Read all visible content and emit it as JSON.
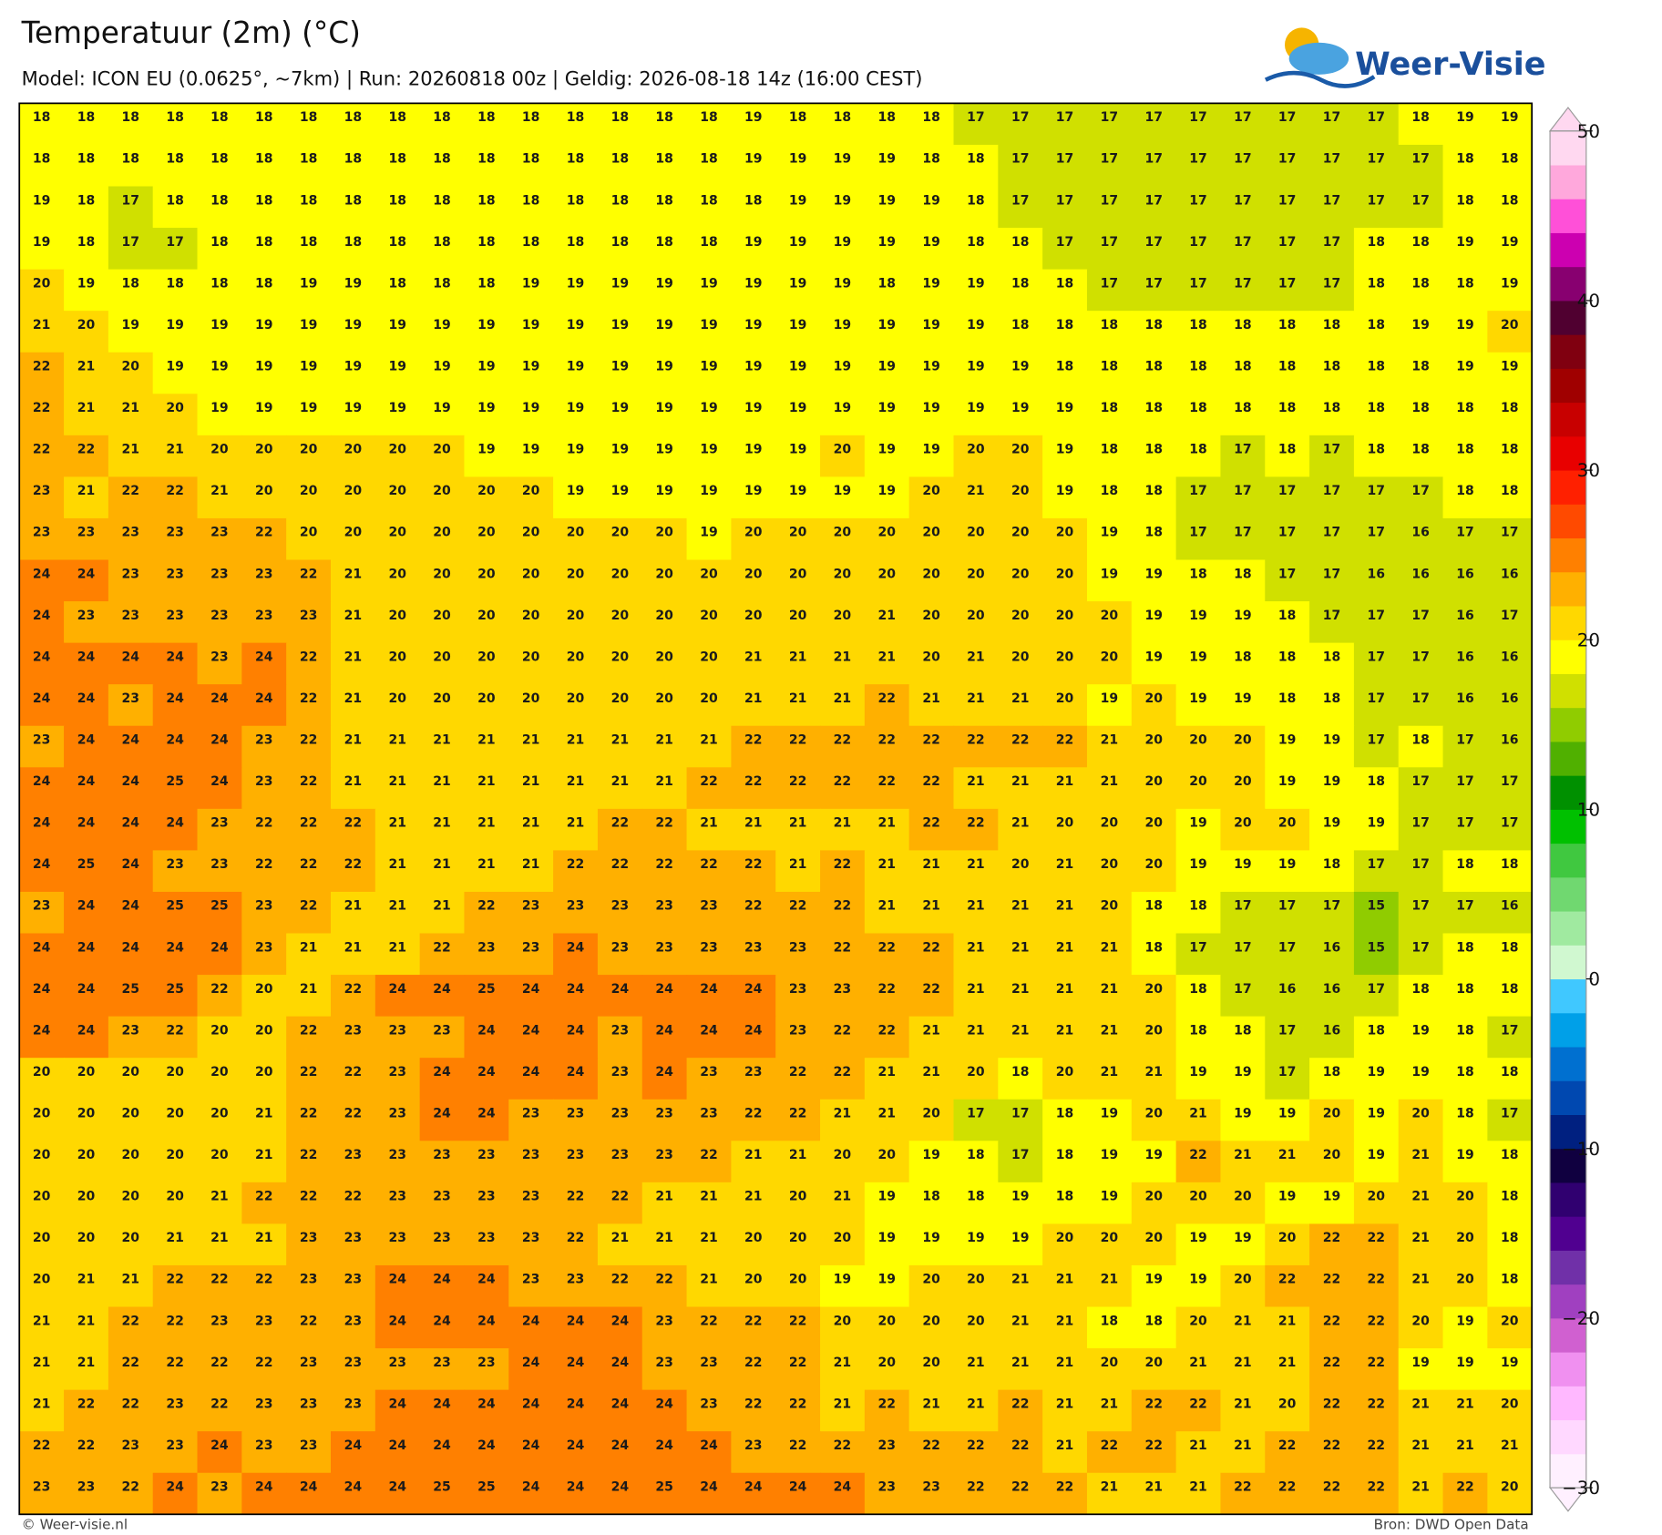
{
  "header": {
    "title": "Temperatuur (2m) (°C)",
    "subtitle": "Model: ICON EU (0.0625°, ~7km)  |  Run: 20260818 00z  |  Geldig: 2026-08-18 14z (16:00 CEST)",
    "logo": "Weer-Visie"
  },
  "grid": {
    "rows": [
      [
        18,
        18,
        18,
        18,
        18,
        18,
        18,
        18,
        18,
        18,
        18,
        18,
        18,
        18,
        18,
        18,
        19,
        18,
        18,
        18,
        18,
        17,
        17,
        17,
        17,
        17,
        17,
        17,
        17,
        17,
        17,
        18,
        19,
        19
      ],
      [
        18,
        18,
        18,
        18,
        18,
        18,
        18,
        18,
        18,
        18,
        18,
        18,
        18,
        18,
        18,
        18,
        19,
        19,
        19,
        19,
        18,
        18,
        17,
        17,
        17,
        17,
        17,
        17,
        17,
        17,
        17,
        17,
        18,
        18
      ],
      [
        19,
        18,
        17,
        18,
        18,
        18,
        18,
        18,
        18,
        18,
        18,
        18,
        18,
        18,
        18,
        18,
        18,
        19,
        19,
        19,
        19,
        18,
        17,
        17,
        17,
        17,
        17,
        17,
        17,
        17,
        17,
        17,
        18,
        18
      ],
      [
        19,
        18,
        17,
        17,
        18,
        18,
        18,
        18,
        18,
        18,
        18,
        18,
        18,
        18,
        18,
        18,
        19,
        19,
        19,
        19,
        19,
        18,
        18,
        17,
        17,
        17,
        17,
        17,
        17,
        17,
        18,
        18,
        19,
        19
      ],
      [
        20,
        19,
        18,
        18,
        18,
        18,
        19,
        19,
        18,
        18,
        18,
        19,
        19,
        19,
        19,
        19,
        19,
        19,
        19,
        18,
        19,
        19,
        18,
        18,
        17,
        17,
        17,
        17,
        17,
        17,
        18,
        18,
        18,
        19
      ],
      [
        21,
        20,
        19,
        19,
        19,
        19,
        19,
        19,
        19,
        19,
        19,
        19,
        19,
        19,
        19,
        19,
        19,
        19,
        19,
        19,
        19,
        19,
        18,
        18,
        18,
        18,
        18,
        18,
        18,
        18,
        18,
        19,
        19,
        20
      ],
      [
        22,
        21,
        20,
        19,
        19,
        19,
        19,
        19,
        19,
        19,
        19,
        19,
        19,
        19,
        19,
        19,
        19,
        19,
        19,
        19,
        19,
        19,
        19,
        18,
        18,
        18,
        18,
        18,
        18,
        18,
        18,
        18,
        19,
        19
      ],
      [
        22,
        21,
        21,
        20,
        19,
        19,
        19,
        19,
        19,
        19,
        19,
        19,
        19,
        19,
        19,
        19,
        19,
        19,
        19,
        19,
        19,
        19,
        19,
        19,
        18,
        18,
        18,
        18,
        18,
        18,
        18,
        18,
        18,
        18
      ],
      [
        22,
        22,
        21,
        21,
        20,
        20,
        20,
        20,
        20,
        20,
        19,
        19,
        19,
        19,
        19,
        19,
        19,
        19,
        20,
        19,
        19,
        20,
        20,
        19,
        18,
        18,
        18,
        17,
        18,
        17,
        18,
        18,
        18,
        18
      ],
      [
        23,
        21,
        22,
        22,
        21,
        20,
        20,
        20,
        20,
        20,
        20,
        20,
        19,
        19,
        19,
        19,
        19,
        19,
        19,
        19,
        20,
        21,
        20,
        19,
        18,
        18,
        17,
        17,
        17,
        17,
        17,
        17,
        18,
        18
      ],
      [
        23,
        23,
        23,
        23,
        23,
        22,
        20,
        20,
        20,
        20,
        20,
        20,
        20,
        20,
        20,
        19,
        20,
        20,
        20,
        20,
        20,
        20,
        20,
        20,
        19,
        18,
        17,
        17,
        17,
        17,
        17,
        16,
        17,
        17
      ],
      [
        24,
        24,
        23,
        23,
        23,
        23,
        22,
        21,
        20,
        20,
        20,
        20,
        20,
        20,
        20,
        20,
        20,
        20,
        20,
        20,
        20,
        20,
        20,
        20,
        19,
        19,
        18,
        18,
        17,
        17,
        16,
        16,
        16,
        16
      ],
      [
        24,
        23,
        23,
        23,
        23,
        23,
        23,
        21,
        20,
        20,
        20,
        20,
        20,
        20,
        20,
        20,
        20,
        20,
        20,
        21,
        20,
        20,
        20,
        20,
        20,
        19,
        19,
        19,
        18,
        17,
        17,
        17,
        16,
        17
      ],
      [
        24,
        24,
        24,
        24,
        23,
        24,
        22,
        21,
        20,
        20,
        20,
        20,
        20,
        20,
        20,
        20,
        21,
        21,
        21,
        21,
        20,
        21,
        20,
        20,
        20,
        19,
        19,
        18,
        18,
        18,
        17,
        17,
        16,
        16
      ],
      [
        24,
        24,
        23,
        24,
        24,
        24,
        22,
        21,
        20,
        20,
        20,
        20,
        20,
        20,
        20,
        20,
        21,
        21,
        21,
        22,
        21,
        21,
        21,
        20,
        19,
        20,
        19,
        19,
        18,
        18,
        17,
        17,
        16,
        16
      ],
      [
        23,
        24,
        24,
        24,
        24,
        23,
        22,
        21,
        21,
        21,
        21,
        21,
        21,
        21,
        21,
        21,
        22,
        22,
        22,
        22,
        22,
        22,
        22,
        22,
        21,
        20,
        20,
        20,
        19,
        19,
        17,
        18,
        17,
        16
      ],
      [
        24,
        24,
        24,
        25,
        24,
        23,
        22,
        21,
        21,
        21,
        21,
        21,
        21,
        21,
        21,
        22,
        22,
        22,
        22,
        22,
        22,
        21,
        21,
        21,
        21,
        20,
        20,
        20,
        19,
        19,
        18,
        17,
        17,
        17
      ],
      [
        24,
        24,
        24,
        24,
        23,
        22,
        22,
        22,
        21,
        21,
        21,
        21,
        21,
        22,
        22,
        21,
        21,
        21,
        21,
        21,
        22,
        22,
        21,
        20,
        20,
        20,
        19,
        20,
        20,
        19,
        19,
        17,
        17,
        17
      ],
      [
        24,
        25,
        24,
        23,
        23,
        22,
        22,
        22,
        21,
        21,
        21,
        21,
        22,
        22,
        22,
        22,
        22,
        21,
        22,
        21,
        21,
        21,
        20,
        21,
        20,
        20,
        19,
        19,
        19,
        18,
        17,
        17,
        18,
        18
      ],
      [
        23,
        24,
        24,
        25,
        25,
        23,
        22,
        21,
        21,
        21,
        22,
        23,
        23,
        23,
        23,
        23,
        22,
        22,
        22,
        21,
        21,
        21,
        21,
        21,
        20,
        18,
        18,
        17,
        17,
        17,
        15,
        17,
        17,
        16
      ],
      [
        24,
        24,
        24,
        24,
        24,
        23,
        21,
        21,
        21,
        22,
        23,
        23,
        24,
        23,
        23,
        23,
        23,
        23,
        22,
        22,
        22,
        21,
        21,
        21,
        21,
        18,
        17,
        17,
        17,
        16,
        15,
        17,
        18,
        18
      ],
      [
        24,
        24,
        25,
        25,
        22,
        20,
        21,
        22,
        24,
        24,
        25,
        24,
        24,
        24,
        24,
        24,
        24,
        23,
        23,
        22,
        22,
        21,
        21,
        21,
        21,
        20,
        18,
        17,
        16,
        16,
        17,
        18,
        18,
        18
      ],
      [
        24,
        24,
        23,
        22,
        20,
        20,
        22,
        23,
        23,
        23,
        24,
        24,
        24,
        23,
        24,
        24,
        24,
        23,
        22,
        22,
        21,
        21,
        21,
        21,
        21,
        20,
        18,
        18,
        17,
        16,
        18,
        19,
        18,
        17
      ],
      [
        20,
        20,
        20,
        20,
        20,
        20,
        22,
        22,
        23,
        24,
        24,
        24,
        24,
        23,
        24,
        23,
        23,
        22,
        22,
        21,
        21,
        20,
        18,
        20,
        21,
        21,
        19,
        19,
        17,
        18,
        19,
        19,
        18,
        18
      ],
      [
        20,
        20,
        20,
        20,
        20,
        21,
        22,
        22,
        23,
        24,
        24,
        23,
        23,
        23,
        23,
        23,
        22,
        22,
        21,
        21,
        20,
        17,
        17,
        18,
        19,
        20,
        21,
        19,
        19,
        20,
        19,
        20,
        18,
        17
      ],
      [
        20,
        20,
        20,
        20,
        20,
        21,
        22,
        23,
        23,
        23,
        23,
        23,
        23,
        23,
        23,
        22,
        21,
        21,
        20,
        20,
        19,
        18,
        17,
        18,
        19,
        19,
        22,
        21,
        21,
        20,
        19,
        21,
        19,
        18
      ],
      [
        20,
        20,
        20,
        20,
        21,
        22,
        22,
        22,
        23,
        23,
        23,
        23,
        22,
        22,
        21,
        21,
        21,
        20,
        21,
        19,
        18,
        18,
        19,
        18,
        19,
        20,
        20,
        20,
        19,
        19,
        20,
        21,
        20,
        18
      ],
      [
        20,
        20,
        20,
        21,
        21,
        21,
        23,
        23,
        23,
        23,
        23,
        23,
        22,
        21,
        21,
        21,
        20,
        20,
        20,
        19,
        19,
        19,
        19,
        20,
        20,
        20,
        19,
        19,
        20,
        22,
        22,
        21,
        20,
        18
      ],
      [
        20,
        21,
        21,
        22,
        22,
        22,
        23,
        23,
        24,
        24,
        24,
        23,
        23,
        22,
        22,
        21,
        20,
        20,
        19,
        19,
        20,
        20,
        21,
        21,
        21,
        19,
        19,
        20,
        22,
        22,
        22,
        21,
        20,
        18
      ],
      [
        21,
        21,
        22,
        22,
        23,
        23,
        22,
        23,
        24,
        24,
        24,
        24,
        24,
        24,
        23,
        22,
        22,
        22,
        20,
        20,
        20,
        20,
        21,
        21,
        18,
        18,
        20,
        21,
        21,
        22,
        22,
        20,
        19,
        20
      ],
      [
        21,
        21,
        22,
        22,
        22,
        22,
        23,
        23,
        23,
        23,
        23,
        24,
        24,
        24,
        23,
        23,
        22,
        22,
        21,
        20,
        20,
        21,
        21,
        21,
        20,
        20,
        21,
        21,
        21,
        22,
        22,
        19,
        19,
        19
      ],
      [
        21,
        22,
        22,
        23,
        22,
        23,
        23,
        23,
        24,
        24,
        24,
        24,
        24,
        24,
        24,
        23,
        22,
        22,
        21,
        22,
        21,
        21,
        22,
        21,
        21,
        22,
        22,
        21,
        20,
        22,
        22,
        21,
        21,
        20
      ],
      [
        22,
        22,
        23,
        23,
        24,
        23,
        23,
        24,
        24,
        24,
        24,
        24,
        24,
        24,
        24,
        24,
        23,
        22,
        22,
        23,
        22,
        22,
        22,
        21,
        22,
        22,
        21,
        21,
        22,
        22,
        22,
        21,
        21,
        21
      ],
      [
        23,
        23,
        22,
        24,
        23,
        24,
        24,
        24,
        24,
        25,
        25,
        24,
        24,
        24,
        25,
        24,
        24,
        24,
        24,
        23,
        23,
        22,
        22,
        22,
        21,
        21,
        21,
        22,
        22,
        22,
        22,
        21,
        22,
        20
      ]
    ]
  },
  "colorbar": {
    "lim": [
      -30,
      50
    ],
    "colors": [
      "#fff0ff",
      "#ffd8ff",
      "#ffb8ff",
      "#f090f0",
      "#d060d0",
      "#a040c0",
      "#7030a8",
      "#500090",
      "#300070",
      "#100040",
      "#002080",
      "#0048b0",
      "#0070d0",
      "#00a0e8",
      "#40c8ff",
      "#d0f8d0",
      "#a0eaa0",
      "#70d870",
      "#40c840",
      "#00c000",
      "#009000",
      "#50b000",
      "#90cc00",
      "#d0e000",
      "#ffff00",
      "#ffd800",
      "#ffb000",
      "#ff8000",
      "#ff4a00",
      "#ff2000",
      "#e80000",
      "#c80000",
      "#a00000",
      "#800010",
      "#500030",
      "#880070",
      "#cc00b0",
      "#ff50d8",
      "#ffa8dc",
      "#ffd8f0"
    ],
    "ticks": [
      50,
      40,
      30,
      20,
      10,
      0,
      {
        "value": -10,
        "label": "−10"
      },
      {
        "value": -20,
        "label": "−20"
      },
      {
        "value": -30,
        "label": "−30"
      }
    ]
  },
  "footer": {
    "left": "© Weer-visie.nl",
    "right": "Bron: DWD Open Data"
  }
}
